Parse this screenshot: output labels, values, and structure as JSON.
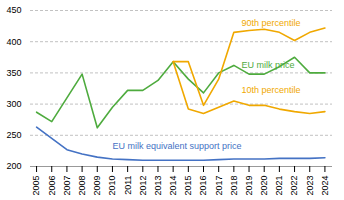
{
  "chart_data": {
    "type": "line",
    "x": [
      2005,
      2006,
      2007,
      2008,
      2009,
      2010,
      2011,
      2012,
      2013,
      2014,
      2015,
      2016,
      2017,
      2018,
      2019,
      2020,
      2021,
      2022,
      2023,
      2024
    ],
    "series": [
      {
        "color": "#4eab3e",
        "values": [
          287,
          272,
          310,
          348,
          262,
          295,
          322,
          322,
          338,
          368,
          340,
          318,
          350,
          362,
          348,
          348,
          360,
          375,
          350,
          350
        ]
      },
      {
        "color": "#f0a800",
        "values": [
          null,
          null,
          null,
          null,
          null,
          null,
          null,
          null,
          null,
          368,
          368,
          298,
          340,
          415,
          418,
          420,
          415,
          402,
          415,
          422
        ]
      },
      {
        "color": "#f0a800",
        "values": [
          null,
          null,
          null,
          null,
          null,
          null,
          null,
          null,
          null,
          368,
          292,
          285,
          295,
          305,
          298,
          298,
          292,
          288,
          285,
          288
        ]
      },
      {
        "color": "#4472c4",
        "values": [
          263,
          245,
          227,
          220,
          215,
          212,
          211,
          210,
          210,
          210,
          210,
          210,
          211,
          212,
          212,
          212,
          213,
          213,
          213,
          214
        ]
      }
    ],
    "xlim": [
      2004.6,
      2024.5
    ],
    "xticks": [
      2005,
      2006,
      2007,
      2008,
      2009,
      2010,
      2011,
      2012,
      2013,
      2014,
      2015,
      2016,
      2017,
      2018,
      2019,
      2020,
      2021,
      2022,
      2023,
      2024
    ],
    "ylim": [
      200,
      450
    ],
    "yticks": [
      200,
      250,
      300,
      350,
      400,
      450
    ],
    "grid": true,
    "annotations": [
      {
        "text": "90th percentile",
        "x": 2018.5,
        "y": 425,
        "color": "#f0a800"
      },
      {
        "text": "EU milk price",
        "x": 2018.5,
        "y": 358,
        "color": "#4eab3e"
      },
      {
        "text": "10th percentile",
        "x": 2018.5,
        "y": 318,
        "color": "#f0a800"
      },
      {
        "text": "EU milk equivalent support price",
        "x": 2010.0,
        "y": 228,
        "color": "#4472c4"
      }
    ]
  }
}
